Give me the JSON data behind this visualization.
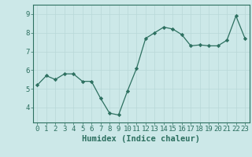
{
  "x": [
    0,
    1,
    2,
    3,
    4,
    5,
    6,
    7,
    8,
    9,
    10,
    11,
    12,
    13,
    14,
    15,
    16,
    17,
    18,
    19,
    20,
    21,
    22,
    23
  ],
  "y": [
    5.2,
    5.7,
    5.5,
    5.8,
    5.8,
    5.4,
    5.4,
    4.5,
    3.7,
    3.6,
    4.9,
    6.1,
    7.7,
    8.0,
    8.3,
    8.2,
    7.9,
    7.3,
    7.35,
    7.3,
    7.3,
    7.6,
    8.9,
    7.7
  ],
  "title": "",
  "xlabel": "Humidex (Indice chaleur)",
  "ylabel": "",
  "xlim": [
    -0.5,
    23.5
  ],
  "ylim": [
    3.2,
    9.5
  ],
  "yticks": [
    4,
    5,
    6,
    7,
    8,
    9
  ],
  "xticks": [
    0,
    1,
    2,
    3,
    4,
    5,
    6,
    7,
    8,
    9,
    10,
    11,
    12,
    13,
    14,
    15,
    16,
    17,
    18,
    19,
    20,
    21,
    22,
    23
  ],
  "line_color": "#2d7060",
  "marker_color": "#2d7060",
  "bg_color": "#cce8e8",
  "grid_color": "#b8d8d8",
  "axis_color": "#2d7060",
  "label_color": "#2d7060",
  "tick_label_color": "#2d7060",
  "xlabel_fontsize": 7.5,
  "tick_fontsize": 6.5
}
